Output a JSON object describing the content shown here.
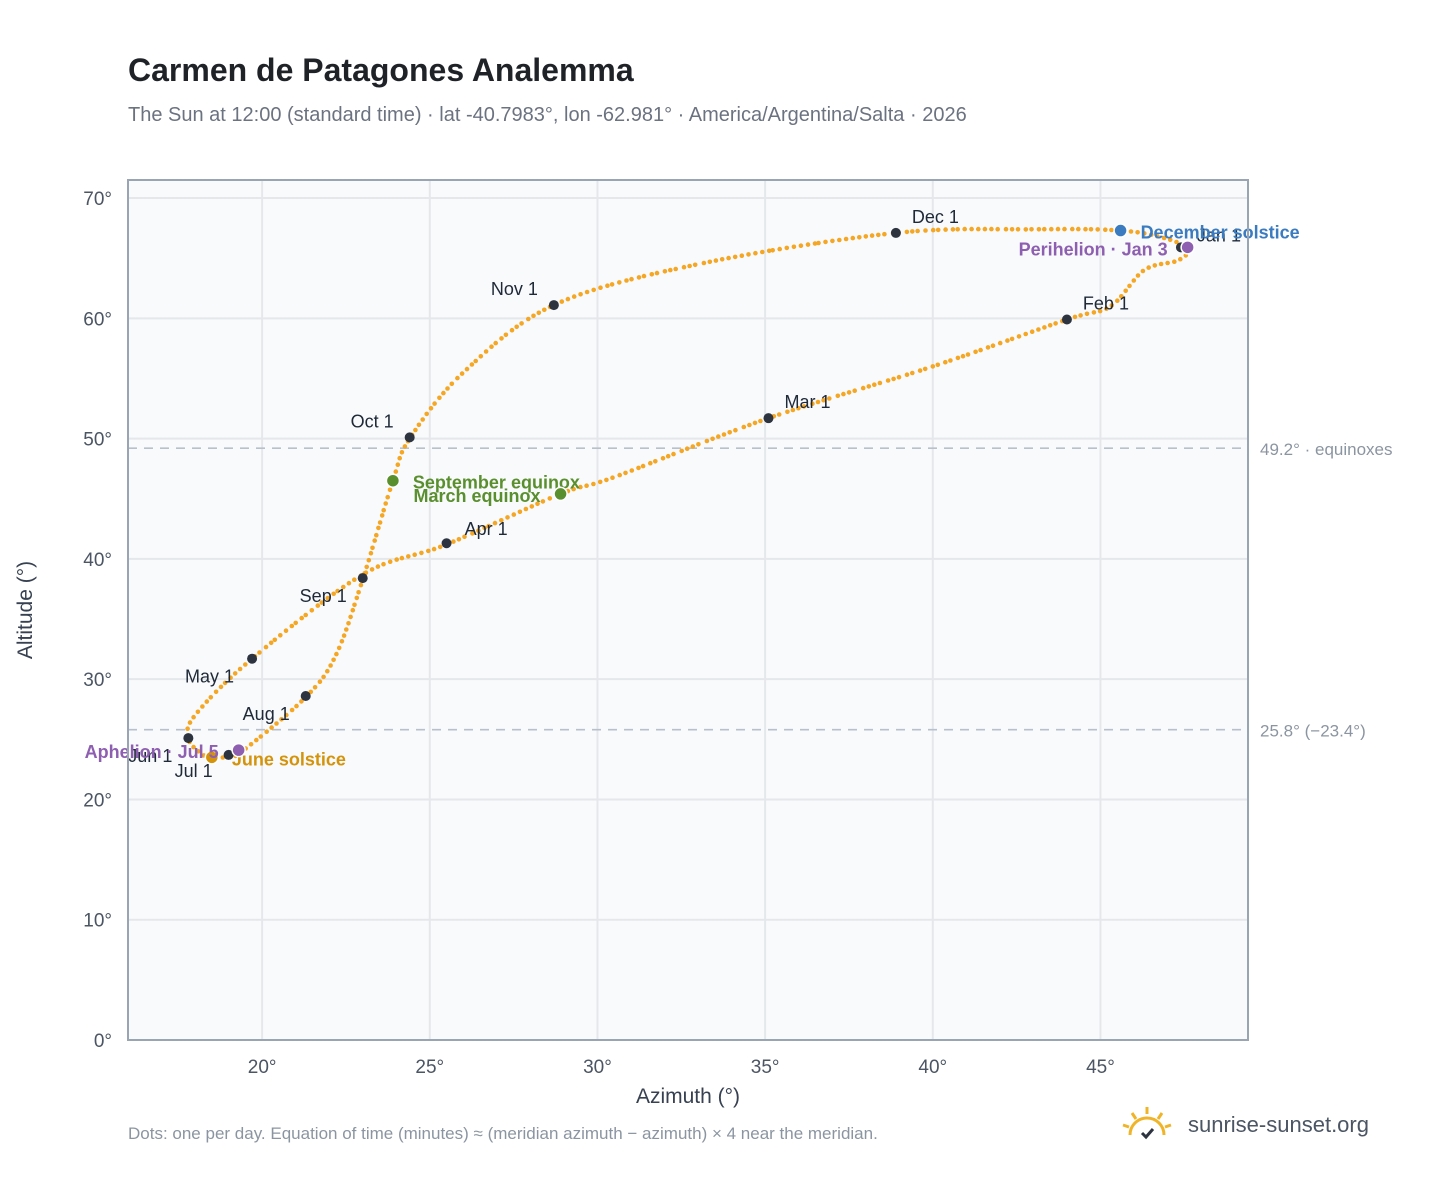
{
  "title": "Carmen de Patagones Analemma",
  "subtitle": "The Sun at 12:00 (standard time) · lat -40.7983°, lon -62.981° · America/Argentina/Salta · 2026",
  "footnote": "Dots: one per day. Equation of time (minutes) ≈ (meridian azimuth − azimuth) × 4 near the meridian.",
  "brand": {
    "text": "sunrise-sunset.org",
    "icon": "sun-logo-icon"
  },
  "colors": {
    "path": "#f5a623",
    "marker": "#2d3440",
    "equinox": "#5a8f2e",
    "december_solstice": "#3b7bbf",
    "june_solstice": "#d4930a",
    "perihelion": "#8e5fb0",
    "aphelion": "#8e5fb0",
    "plot_bg": "#f8fafc",
    "grid": "#e5e7eb",
    "frame": "#9aa5b4",
    "reference_line": "#b8c0cc"
  },
  "chart_data": {
    "type": "scatter",
    "xlabel": "Azimuth (°)",
    "ylabel": "Altitude (°)",
    "xlim": [
      16,
      49.4
    ],
    "ylim": [
      0,
      71.5
    ],
    "xticks": [
      20,
      25,
      30,
      35,
      40,
      45
    ],
    "yticks": [
      0,
      10,
      20,
      30,
      40,
      50,
      60,
      70
    ],
    "tick_suffix": "°",
    "grid": true,
    "series_points": "one dot per day",
    "analemma_path": [
      [
        47.6,
        65.7
      ],
      [
        47.3,
        64.8
      ],
      [
        46.3,
        64.0
      ],
      [
        45.3,
        61.0
      ],
      [
        44.0,
        59.9
      ],
      [
        40.0,
        56.0
      ],
      [
        35.1,
        51.7
      ],
      [
        30.5,
        46.8
      ],
      [
        28.9,
        45.4
      ],
      [
        25.5,
        41.2
      ],
      [
        23.0,
        38.7
      ],
      [
        19.7,
        31.7
      ],
      [
        18.0,
        27.0
      ],
      [
        17.8,
        25.1
      ],
      [
        18.1,
        24.0
      ],
      [
        18.5,
        23.4
      ],
      [
        19.0,
        23.6
      ],
      [
        19.4,
        24.0
      ],
      [
        21.3,
        28.5
      ],
      [
        22.2,
        32.0
      ],
      [
        23.0,
        38.3
      ],
      [
        23.9,
        46.5
      ],
      [
        24.4,
        50.0
      ],
      [
        26.0,
        55.5
      ],
      [
        28.7,
        61.1
      ],
      [
        33.0,
        64.5
      ],
      [
        38.9,
        67.1
      ],
      [
        43.0,
        67.4
      ],
      [
        45.6,
        67.3
      ],
      [
        47.0,
        66.6
      ],
      [
        47.6,
        65.7
      ]
    ],
    "month_markers": [
      {
        "label": "Jan 1",
        "az": 47.4,
        "alt": 65.9
      },
      {
        "label": "Feb 1",
        "az": 44.0,
        "alt": 59.9
      },
      {
        "label": "Mar 1",
        "az": 35.1,
        "alt": 51.7
      },
      {
        "label": "Apr 1",
        "az": 25.5,
        "alt": 41.3
      },
      {
        "label": "May 1",
        "az": 19.7,
        "alt": 31.7
      },
      {
        "label": "Jun 1",
        "az": 17.8,
        "alt": 25.1
      },
      {
        "label": "Jul 1",
        "az": 19.0,
        "alt": 23.7
      },
      {
        "label": "Aug 1",
        "az": 21.3,
        "alt": 28.6
      },
      {
        "label": "Sep 1",
        "az": 23.0,
        "alt": 38.4
      },
      {
        "label": "Oct 1",
        "az": 24.4,
        "alt": 50.1
      },
      {
        "label": "Nov 1",
        "az": 28.7,
        "alt": 61.1
      },
      {
        "label": "Dec 1",
        "az": 38.9,
        "alt": 67.1
      }
    ],
    "events": [
      {
        "label": "September equinox",
        "az": 23.9,
        "alt": 46.5,
        "color_key": "equinox"
      },
      {
        "label": "March equinox",
        "az": 28.9,
        "alt": 45.4,
        "color_key": "equinox"
      },
      {
        "label": "December solstice",
        "az": 45.6,
        "alt": 67.3,
        "color_key": "december_solstice"
      },
      {
        "label": "June solstice",
        "az": 18.5,
        "alt": 23.5,
        "color_key": "june_solstice"
      },
      {
        "label": "Perihelion · Jan 3",
        "az": 47.6,
        "alt": 65.9,
        "color_key": "perihelion"
      },
      {
        "label": "Aphelion · Jul 5",
        "az": 19.3,
        "alt": 24.1,
        "color_key": "aphelion"
      }
    ],
    "reference_lines": [
      {
        "alt": 49.2,
        "label": "49.2° · equinoxes"
      },
      {
        "alt": 25.8,
        "label": "25.8° (−23.4°)"
      }
    ]
  }
}
